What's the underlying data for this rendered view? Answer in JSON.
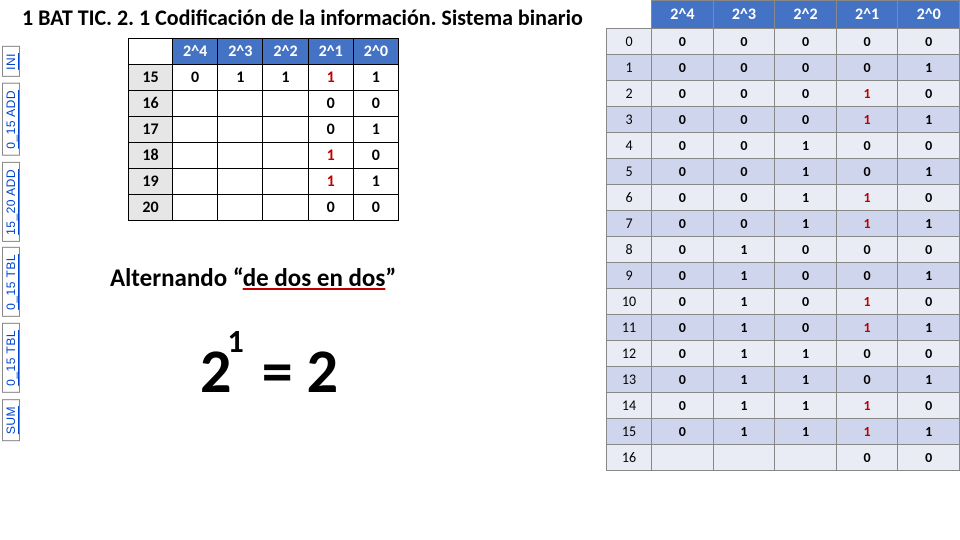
{
  "title": "1 BAT TIC. 2. 1 Codificación de la información. Sistema binario",
  "vtabs": [
    "INI",
    "0_15 ADD",
    "15_20 ADD",
    "0_15 TBL",
    "0_15 TBL",
    "SUM"
  ],
  "small_table": {
    "headers": [
      "",
      "2^4",
      "2^3",
      "2^2",
      "2^1",
      "2^0"
    ],
    "rows": [
      {
        "label": "15",
        "cells": [
          "0",
          "1",
          "1",
          "1red",
          "1"
        ]
      },
      {
        "label": "16",
        "cells": [
          "",
          "",
          "",
          "0",
          "0"
        ]
      },
      {
        "label": "17",
        "cells": [
          "",
          "",
          "",
          "0",
          "1"
        ]
      },
      {
        "label": "18",
        "cells": [
          "",
          "",
          "",
          "1red",
          "0"
        ]
      },
      {
        "label": "19",
        "cells": [
          "",
          "",
          "",
          "1red",
          "1"
        ]
      },
      {
        "label": "20",
        "cells": [
          "",
          "",
          "",
          "0",
          "0"
        ]
      }
    ]
  },
  "big_table": {
    "headers": [
      "",
      "2^4",
      "2^3",
      "2^2",
      "2^1",
      "2^0"
    ],
    "rows": [
      {
        "idx": "0",
        "bits": [
          "0",
          "0",
          "0",
          "0",
          "0"
        ]
      },
      {
        "idx": "1",
        "bits": [
          "0",
          "0",
          "0",
          "0",
          "1"
        ]
      },
      {
        "idx": "2",
        "bits": [
          "0",
          "0",
          "0",
          "1r",
          "0"
        ]
      },
      {
        "idx": "3",
        "bits": [
          "0",
          "0",
          "0",
          "1r",
          "1"
        ]
      },
      {
        "idx": "4",
        "bits": [
          "0",
          "0",
          "1",
          "0",
          "0"
        ]
      },
      {
        "idx": "5",
        "bits": [
          "0",
          "0",
          "1",
          "0",
          "1"
        ]
      },
      {
        "idx": "6",
        "bits": [
          "0",
          "0",
          "1",
          "1r",
          "0"
        ]
      },
      {
        "idx": "7",
        "bits": [
          "0",
          "0",
          "1",
          "1r",
          "1"
        ]
      },
      {
        "idx": "8",
        "bits": [
          "0",
          "1",
          "0",
          "0",
          "0"
        ]
      },
      {
        "idx": "9",
        "bits": [
          "0",
          "1",
          "0",
          "0",
          "1"
        ]
      },
      {
        "idx": "10",
        "bits": [
          "0",
          "1",
          "0",
          "1r",
          "0"
        ]
      },
      {
        "idx": "11",
        "bits": [
          "0",
          "1",
          "0",
          "1r",
          "1"
        ]
      },
      {
        "idx": "12",
        "bits": [
          "0",
          "1",
          "1",
          "0",
          "0"
        ]
      },
      {
        "idx": "13",
        "bits": [
          "0",
          "1",
          "1",
          "0",
          "1"
        ]
      },
      {
        "idx": "14",
        "bits": [
          "0",
          "1",
          "1",
          "1r",
          "0"
        ]
      },
      {
        "idx": "15",
        "bits": [
          "0",
          "1",
          "1",
          "1r",
          "1"
        ]
      },
      {
        "idx": "16",
        "bits": [
          "",
          "",
          "",
          "0",
          "0"
        ]
      }
    ]
  },
  "caption": {
    "prefix": "Alternando  ",
    "open_quote": "“",
    "inner": "de dos en dos",
    "close_quote": "”"
  },
  "formula": {
    "base": "2",
    "exp": "1",
    "rhs": "= 2"
  },
  "colors": {
    "header_bg": "#4472c4",
    "bandA": "#e9ebf5",
    "bandB": "#cfd5ec",
    "red": "#c00000",
    "grey": "#e6e6e6"
  }
}
